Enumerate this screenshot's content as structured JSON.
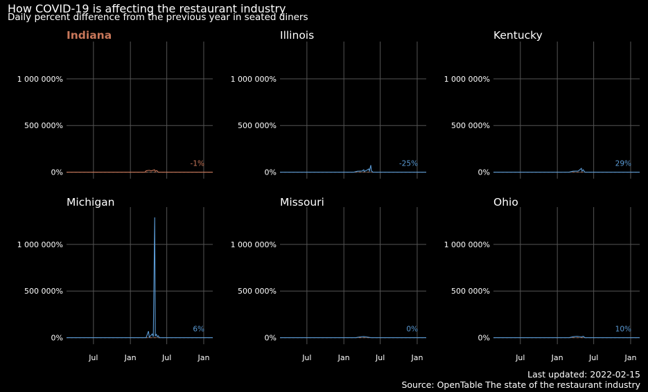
{
  "header": {
    "title": "How COVID-19 is affecting the restaurant industry",
    "subtitle": "Daily percent difference from the previous year in seated diners"
  },
  "caption": {
    "updated": "Last updated: 2022-02-15",
    "source": "Source: OpenTable The state of the restaurant industry"
  },
  "colors": {
    "highlight": "#c8775a",
    "other": "#5b9bd5",
    "grid": "#555555",
    "background": "#000000"
  },
  "chart_data": {
    "type": "line",
    "facets": [
      "Indiana",
      "Illinois",
      "Kentucky",
      "Michigan",
      "Missouri",
      "Ohio"
    ],
    "highlighted_facet": "Indiana",
    "y_ticks": [
      0,
      500000,
      1000000
    ],
    "y_tick_labels": [
      "0%",
      "500 000%",
      "1 000 000%"
    ],
    "ylim": [
      -70000,
      1400000
    ],
    "x_ticks": [
      "2020-07-01",
      "2021-01-01",
      "2021-07-01",
      "2022-01-01"
    ],
    "x_tick_labels": [
      "Jul",
      "Jan",
      "Jul",
      "Jan"
    ],
    "xlim": [
      "2020-02-18",
      "2022-02-15"
    ],
    "grid": true,
    "series": [
      {
        "name": "Indiana",
        "end_label": "-1%",
        "points": [
          [
            "2020-02-18",
            0
          ],
          [
            "2021-03-15",
            0
          ],
          [
            "2021-03-20",
            15000
          ],
          [
            "2021-04-05",
            20000
          ],
          [
            "2021-04-15",
            14000
          ],
          [
            "2021-05-01",
            25000
          ],
          [
            "2021-05-05",
            10000
          ],
          [
            "2021-05-12",
            18000
          ],
          [
            "2021-05-20",
            0
          ],
          [
            "2022-02-15",
            -1
          ]
        ]
      },
      {
        "name": "Illinois",
        "end_label": "-25%",
        "points": [
          [
            "2020-02-18",
            0
          ],
          [
            "2021-02-20",
            0
          ],
          [
            "2021-03-10",
            10000
          ],
          [
            "2021-04-01",
            12000
          ],
          [
            "2021-04-10",
            25000
          ],
          [
            "2021-04-12",
            8000
          ],
          [
            "2021-04-25",
            20000
          ],
          [
            "2021-05-05",
            35000
          ],
          [
            "2021-05-08",
            12000
          ],
          [
            "2021-05-15",
            75000
          ],
          [
            "2021-05-18",
            15000
          ],
          [
            "2021-05-25",
            0
          ],
          [
            "2022-02-15",
            -25
          ]
        ]
      },
      {
        "name": "Kentucky",
        "end_label": "29%",
        "points": [
          [
            "2020-02-18",
            0
          ],
          [
            "2021-03-01",
            0
          ],
          [
            "2021-03-20",
            10000
          ],
          [
            "2021-04-15",
            12000
          ],
          [
            "2021-05-01",
            40000
          ],
          [
            "2021-05-04",
            10000
          ],
          [
            "2021-05-10",
            25000
          ],
          [
            "2021-05-18",
            0
          ],
          [
            "2022-02-15",
            29
          ]
        ]
      },
      {
        "name": "Michigan",
        "end_label": "6%",
        "points": [
          [
            "2020-02-18",
            0
          ],
          [
            "2021-03-20",
            0
          ],
          [
            "2021-04-01",
            70000
          ],
          [
            "2021-04-05",
            5000
          ],
          [
            "2021-04-20",
            40000
          ],
          [
            "2021-04-25",
            10000
          ],
          [
            "2021-05-02",
            1290000
          ],
          [
            "2021-05-05",
            20000
          ],
          [
            "2021-05-10",
            35000
          ],
          [
            "2021-05-15",
            10000
          ],
          [
            "2021-05-20",
            20000
          ],
          [
            "2021-05-25",
            0
          ],
          [
            "2022-02-15",
            6
          ]
        ]
      },
      {
        "name": "Missouri",
        "end_label": "0%",
        "points": [
          [
            "2020-02-18",
            0
          ],
          [
            "2021-03-01",
            0
          ],
          [
            "2021-03-20",
            8000
          ],
          [
            "2021-04-10",
            12000
          ],
          [
            "2021-04-30",
            6000
          ],
          [
            "2021-05-15",
            0
          ],
          [
            "2022-02-15",
            0
          ]
        ]
      },
      {
        "name": "Ohio",
        "end_label": "10%",
        "points": [
          [
            "2020-02-18",
            0
          ],
          [
            "2021-03-01",
            0
          ],
          [
            "2021-03-20",
            10000
          ],
          [
            "2021-04-10",
            15000
          ],
          [
            "2021-05-01",
            8000
          ],
          [
            "2021-05-10",
            15000
          ],
          [
            "2021-05-18",
            0
          ],
          [
            "2022-02-15",
            10
          ]
        ]
      }
    ]
  }
}
